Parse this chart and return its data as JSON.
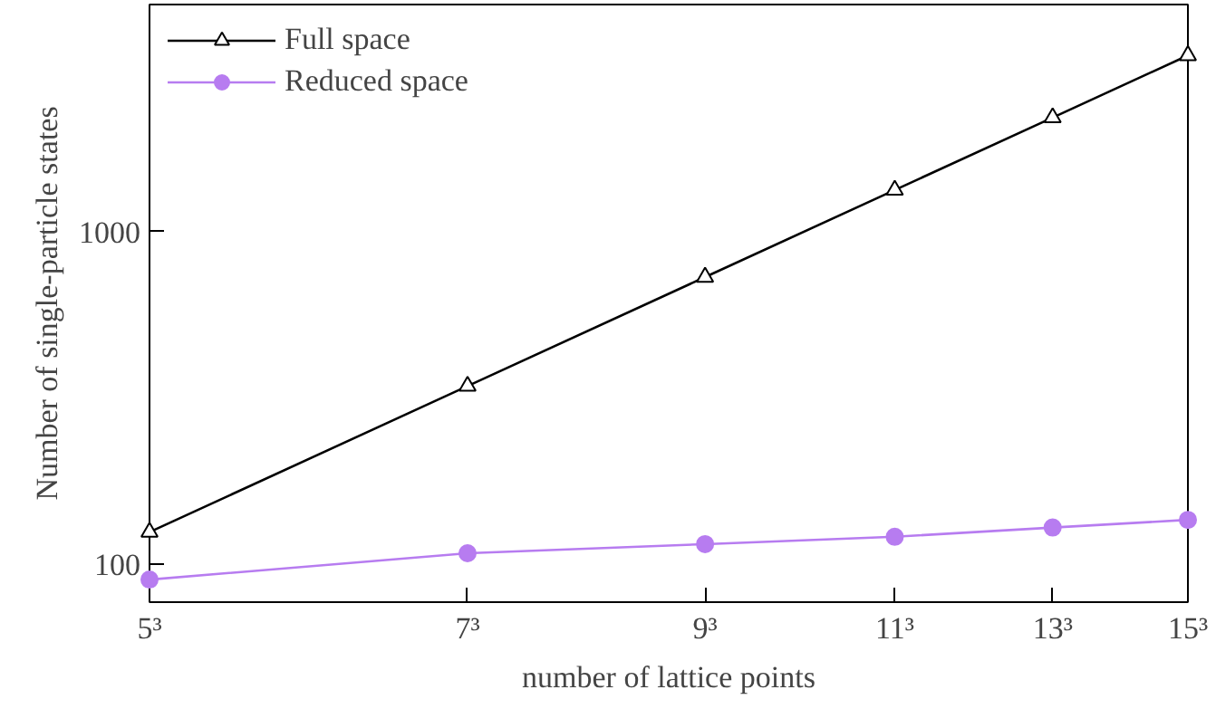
{
  "chart_data": {
    "type": "line",
    "xlabel": "number of lattice points",
    "ylabel": "Number of single-particle states",
    "x": [
      5,
      7,
      9,
      11,
      13,
      15
    ],
    "series": [
      {
        "name": "Full space",
        "color": "#000000",
        "marker": "triangle",
        "values": [
          125,
          343,
          729,
          1331,
          2197,
          3375
        ]
      },
      {
        "name": "Reduced space",
        "color": "#b77cf0",
        "marker": "circle",
        "values": [
          90,
          108,
          115,
          121,
          129,
          136
        ]
      }
    ],
    "log": "xy",
    "xlim": [
      5,
      15
    ],
    "ylim": [
      77,
      4800
    ],
    "xticks": [
      {
        "value": 5,
        "label": "5³"
      },
      {
        "value": 7,
        "label": "7³"
      },
      {
        "value": 9,
        "label": "9³"
      },
      {
        "value": 11,
        "label": "11³"
      },
      {
        "value": 13,
        "label": "13³"
      },
      {
        "value": 15,
        "label": "15³"
      }
    ],
    "yticks": [
      100,
      1000
    ],
    "grid": false,
    "legend": "top left"
  }
}
